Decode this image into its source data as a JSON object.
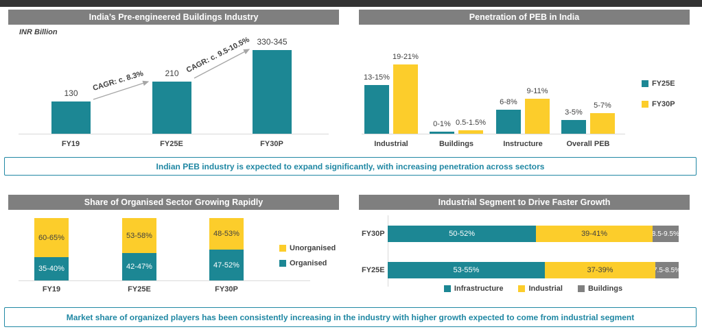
{
  "colors": {
    "teal": "#1C8794",
    "yellow": "#FCCD2B",
    "gray": "#808080",
    "header_band": "#7F7F7F",
    "top_strip": "#333333",
    "banner_teal": "#1F87A3",
    "text": "#404040"
  },
  "banners": {
    "top": "Indian PEB industry is expected to expand significantly, with increasing penetration across sectors",
    "bottom": "Market share of organized players has been consistently increasing in the industry with higher growth expected to come from industrial segment"
  },
  "chart_data": [
    {
      "id": "peb_industry",
      "type": "bar",
      "title": "India’s Pre-engineered Buildings Industry",
      "ylabel": "INR Billion",
      "categories": [
        "FY19",
        "FY25E",
        "FY30P"
      ],
      "values": [
        130,
        210,
        337.5
      ],
      "value_labels": [
        "130",
        "210",
        "330-345"
      ],
      "ylim": [
        0,
        420
      ],
      "grid": false,
      "bar_color": "#1C8794",
      "annotations": [
        "CAGR: c. 8.3%",
        "CAGR: c. 9.5-10.5%"
      ]
    },
    {
      "id": "peb_penetration",
      "type": "bar",
      "title": "Penetration of PEB in India",
      "categories": [
        "Industrial",
        "Buildings",
        "Instructure",
        "Overall PEB"
      ],
      "series": [
        {
          "name": "FY25E",
          "color": "#1C8794",
          "values": [
            14,
            0.5,
            7,
            4
          ],
          "value_labels": [
            "13-15%",
            "0-1%",
            "6-8%",
            "3-5%"
          ]
        },
        {
          "name": "FY30P",
          "color": "#FCCD2B",
          "values": [
            20,
            1,
            10,
            6
          ],
          "value_labels": [
            "19-21%",
            "0.5-1.5%",
            "9-11%",
            "5-7%"
          ]
        }
      ],
      "ylim": [
        0,
        30
      ],
      "grid": false,
      "legend_position": "right"
    },
    {
      "id": "organised_share",
      "type": "stacked_bar",
      "title": "Share of Organised Sector Growing Rapidly",
      "categories": [
        "FY19",
        "FY25E",
        "FY30P"
      ],
      "series": [
        {
          "name": "Organised",
          "color": "#1C8794",
          "values": [
            37.5,
            44.5,
            49.5
          ],
          "value_labels": [
            "35-40%",
            "42-47%",
            "47-52%"
          ]
        },
        {
          "name": "Unorganised",
          "color": "#FCCD2B",
          "values": [
            62.5,
            55.5,
            50.5
          ],
          "value_labels": [
            "60-65%",
            "53-58%",
            "48-53%"
          ]
        }
      ],
      "ylim": [
        0,
        100
      ],
      "grid": false,
      "legend_position": "right"
    },
    {
      "id": "segment_mix",
      "type": "horizontal_stacked_bar",
      "title": "Industrial Segment to Drive Faster Growth",
      "categories": [
        "FY30P",
        "FY25E"
      ],
      "series": [
        {
          "name": "Infrastructure",
          "color": "#1C8794",
          "values": [
            51,
            54
          ],
          "value_labels": [
            "50-52%",
            "53-55%"
          ]
        },
        {
          "name": "Industrial",
          "color": "#FCCD2B",
          "values": [
            40,
            38
          ],
          "value_labels": [
            "39-41%",
            "37-39%"
          ]
        },
        {
          "name": "Buildings",
          "color": "#808080",
          "values": [
            9,
            8
          ],
          "value_labels": [
            "8.5-9.5%",
            "7.5-8.5%"
          ]
        }
      ],
      "xlim": [
        0,
        100
      ],
      "grid": false,
      "legend_position": "bottom"
    }
  ]
}
